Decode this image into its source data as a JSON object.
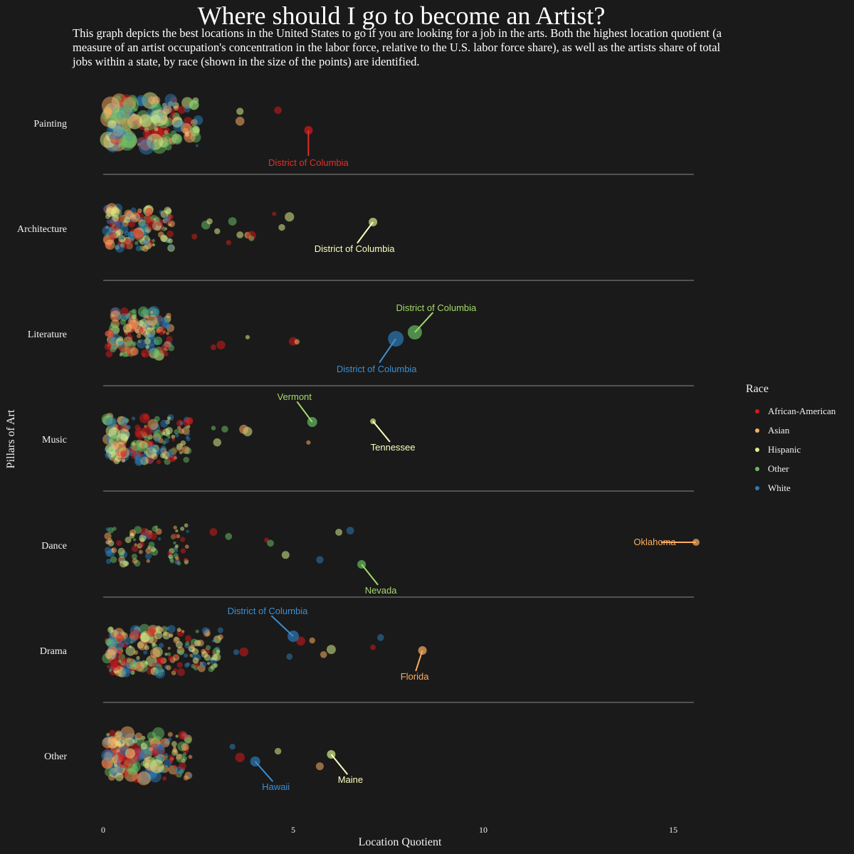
{
  "chart_data": {
    "type": "scatter",
    "title": "Where should I go to become an Artist?",
    "subtitle": "This graph depicts the best locations in the United States to go if you are looking for a job in the arts. Both the highest location quotient (a measure of an artist occupation's concentration in the labor force, relative to the U.S. labor force share), as well as the artists share of total jobs within a state, by race (shown in the size of the points) are identified.",
    "xlabel": "Location Quotient",
    "ylabel": "Pillars of Art",
    "xlim": [
      0,
      17.5
    ],
    "x_ticks": [
      "0",
      "5",
      "10",
      "15"
    ],
    "categories": [
      "Painting",
      "Architecture",
      "Literature",
      "Music",
      "Dance",
      "Drama",
      "Other"
    ],
    "legend": {
      "title": "Race",
      "position": "right",
      "items": [
        {
          "label": "African-American",
          "color": "#d7191c"
        },
        {
          "label": "Asian",
          "color": "#fdae61"
        },
        {
          "label": "Hispanic",
          "color": "#d9ef8b"
        },
        {
          "label": "Other",
          "color": "#66bd63"
        },
        {
          "label": "White",
          "color": "#2c7bb6"
        }
      ]
    },
    "highlighted_points": [
      {
        "category": "Painting",
        "x": 5.4,
        "race": "African-American",
        "label": "District of Columbia"
      },
      {
        "category": "Architecture",
        "x": 7.1,
        "race": "Hispanic",
        "label": "District of Columbia"
      },
      {
        "category": "Literature",
        "x": 8.2,
        "race": "Other",
        "label": "District of Columbia"
      },
      {
        "category": "Literature",
        "x": 7.7,
        "race": "White",
        "label": "District of Columbia"
      },
      {
        "category": "Music",
        "x": 5.5,
        "race": "Other",
        "label": "Vermont"
      },
      {
        "category": "Music",
        "x": 7.1,
        "race": "Hispanic",
        "label": "Tennessee"
      },
      {
        "category": "Dance",
        "x": 15.6,
        "race": "Asian",
        "label": "Oklahoma"
      },
      {
        "category": "Dance",
        "x": 6.8,
        "race": "Other",
        "label": "Nevada"
      },
      {
        "category": "Drama",
        "x": 5.0,
        "race": "White",
        "label": "District of Columbia"
      },
      {
        "category": "Drama",
        "x": 8.4,
        "race": "Asian",
        "label": "Florida"
      },
      {
        "category": "Other",
        "x": 4.0,
        "race": "White",
        "label": "Hawaii"
      },
      {
        "category": "Other",
        "x": 6.0,
        "race": "Hispanic",
        "label": "Maine"
      }
    ],
    "outlier_points": [
      {
        "category": "Painting",
        "x": 3.6,
        "race": "Asian"
      },
      {
        "category": "Painting",
        "x": 3.6,
        "race": "Hispanic"
      },
      {
        "category": "Painting",
        "x": 4.6,
        "race": "African-American"
      },
      {
        "category": "Painting",
        "x": 2.5,
        "race": "White"
      },
      {
        "category": "Architecture",
        "x": 2.4,
        "race": "African-American"
      },
      {
        "category": "Architecture",
        "x": 2.7,
        "race": "Other"
      },
      {
        "category": "Architecture",
        "x": 3.0,
        "race": "Hispanic"
      },
      {
        "category": "Architecture",
        "x": 3.4,
        "race": "Other"
      },
      {
        "category": "Architecture",
        "x": 3.6,
        "race": "Hispanic"
      },
      {
        "category": "Architecture",
        "x": 3.8,
        "race": "Asian"
      },
      {
        "category": "Architecture",
        "x": 3.9,
        "race": "African-American"
      },
      {
        "category": "Architecture",
        "x": 3.9,
        "race": "Other"
      },
      {
        "category": "Architecture",
        "x": 4.5,
        "race": "African-American"
      },
      {
        "category": "Architecture",
        "x": 4.7,
        "race": "Hispanic"
      },
      {
        "category": "Architecture",
        "x": 4.9,
        "race": "Hispanic"
      },
      {
        "category": "Architecture",
        "x": 2.8,
        "race": "Hispanic"
      },
      {
        "category": "Architecture",
        "x": 3.3,
        "race": "African-American"
      },
      {
        "category": "Literature",
        "x": 2.9,
        "race": "African-American"
      },
      {
        "category": "Literature",
        "x": 3.1,
        "race": "African-American"
      },
      {
        "category": "Literature",
        "x": 3.8,
        "race": "Hispanic"
      },
      {
        "category": "Literature",
        "x": 5.0,
        "race": "African-American"
      },
      {
        "category": "Literature",
        "x": 5.1,
        "race": "Asian"
      },
      {
        "category": "Music",
        "x": 3.8,
        "race": "Hispanic"
      },
      {
        "category": "Music",
        "x": 3.7,
        "race": "Asian"
      },
      {
        "category": "Music",
        "x": 3.2,
        "race": "Other"
      },
      {
        "category": "Music",
        "x": 5.4,
        "race": "Asian"
      },
      {
        "category": "Music",
        "x": 2.9,
        "race": "Other"
      },
      {
        "category": "Music",
        "x": 3.0,
        "race": "Hispanic"
      },
      {
        "category": "Dance",
        "x": 4.3,
        "race": "African-American"
      },
      {
        "category": "Dance",
        "x": 4.8,
        "race": "Hispanic"
      },
      {
        "category": "Dance",
        "x": 5.7,
        "race": "White"
      },
      {
        "category": "Dance",
        "x": 6.2,
        "race": "Hispanic"
      },
      {
        "category": "Dance",
        "x": 6.5,
        "race": "White"
      },
      {
        "category": "Dance",
        "x": 3.3,
        "race": "Other"
      },
      {
        "category": "Dance",
        "x": 4.4,
        "race": "Other"
      },
      {
        "category": "Dance",
        "x": 2.9,
        "race": "African-American"
      },
      {
        "category": "Drama",
        "x": 5.2,
        "race": "African-American"
      },
      {
        "category": "Drama",
        "x": 6.0,
        "race": "Hispanic"
      },
      {
        "category": "Drama",
        "x": 7.1,
        "race": "African-American"
      },
      {
        "category": "Drama",
        "x": 5.5,
        "race": "Asian"
      },
      {
        "category": "Drama",
        "x": 5.8,
        "race": "Asian"
      },
      {
        "category": "Drama",
        "x": 7.3,
        "race": "White"
      },
      {
        "category": "Drama",
        "x": 4.9,
        "race": "White"
      },
      {
        "category": "Drama",
        "x": 3.7,
        "race": "African-American"
      },
      {
        "category": "Drama",
        "x": 3.5,
        "race": "White"
      },
      {
        "category": "Other",
        "x": 3.6,
        "race": "African-American"
      },
      {
        "category": "Other",
        "x": 3.4,
        "race": "White"
      },
      {
        "category": "Other",
        "x": 4.6,
        "race": "Hispanic"
      },
      {
        "category": "Other",
        "x": 5.7,
        "race": "Asian"
      }
    ],
    "background_cluster_note_range": [
      0.1,
      2.5
    ],
    "grid": false
  }
}
